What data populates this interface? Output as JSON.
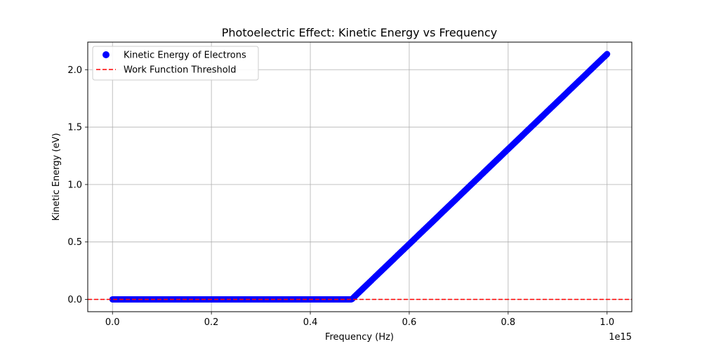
{
  "chart_data": {
    "type": "scatter",
    "title": "Photoelectric Effect: Kinetic Energy vs Frequency",
    "xlabel": "Frequency (Hz)",
    "ylabel": "Kinetic Energy (eV)",
    "x_offset_text": "1e15",
    "xlim": [
      -0.05,
      1.05
    ],
    "ylim": [
      -0.107,
      2.24
    ],
    "x_ticks": [
      {
        "value": 0.0,
        "label": "0.0"
      },
      {
        "value": 0.2,
        "label": "0.2"
      },
      {
        "value": 0.4,
        "label": "0.4"
      },
      {
        "value": 0.6,
        "label": "0.6"
      },
      {
        "value": 0.8,
        "label": "0.8"
      },
      {
        "value": 1.0,
        "label": "1.0"
      }
    ],
    "y_ticks": [
      {
        "value": 0.0,
        "label": "0.0"
      },
      {
        "value": 0.5,
        "label": "0.5"
      },
      {
        "value": 1.0,
        "label": "1.0"
      },
      {
        "value": 1.5,
        "label": "1.5"
      },
      {
        "value": 2.0,
        "label": "2.0"
      }
    ],
    "grid": true,
    "legend_position": "top-left",
    "series": [
      {
        "name": "Kinetic Energy of Electrons",
        "kind": "scatter",
        "color": "#0000ff",
        "x_start": 0.0,
        "x_end": 1.0,
        "threshold_x": 0.4836,
        "max_y": 2.136
      },
      {
        "name": "Work Function Threshold",
        "kind": "hline",
        "y": 0.0,
        "color": "#ff0000",
        "linestyle": "dashed"
      }
    ]
  }
}
